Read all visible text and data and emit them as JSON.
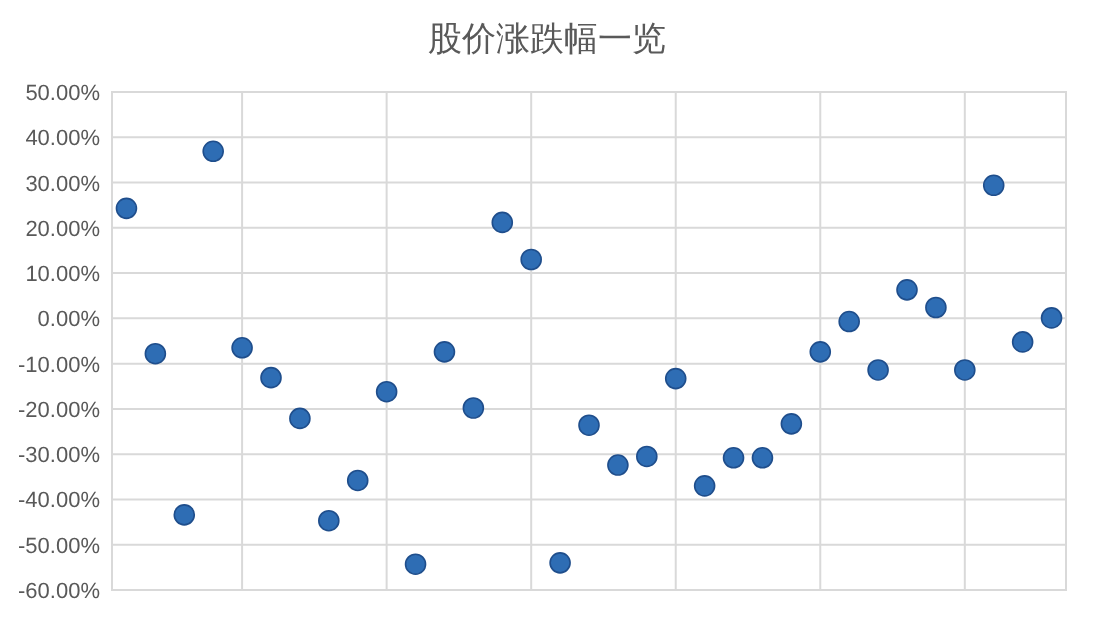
{
  "chart_data": {
    "type": "scatter",
    "title": "股价涨跌幅一览",
    "categories": [
      null,
      null,
      null,
      null,
      null,
      null,
      null,
      null,
      null,
      null,
      null,
      null,
      null,
      null,
      null,
      null,
      null,
      null,
      null,
      null,
      null,
      null,
      null,
      null,
      null,
      null,
      null,
      null,
      null,
      null,
      null,
      null,
      null
    ],
    "values": [
      24.3,
      -7.8,
      -43.4,
      36.9,
      -6.5,
      -13.1,
      -22.1,
      -44.7,
      -35.8,
      -16.2,
      -54.3,
      -7.4,
      -19.8,
      21.2,
      13.0,
      -54.0,
      -23.6,
      -32.4,
      -30.5,
      -13.3,
      -37.0,
      -30.8,
      -30.8,
      -23.3,
      -7.4,
      -0.7,
      -11.4,
      6.3,
      2.4,
      -11.4,
      29.4,
      -5.2,
      0.1
    ],
    "color": "#2e6db4",
    "marker": "circle",
    "grid": true,
    "tick_labels": "y",
    "ylim": [
      -60,
      50
    ],
    "yticks": [
      {
        "value": -60,
        "label": "-60.00%"
      },
      {
        "value": -50,
        "label": "-50.00%"
      },
      {
        "value": -40,
        "label": "-40.00%"
      },
      {
        "value": -30,
        "label": "-30.00%"
      },
      {
        "value": -20,
        "label": "-20.00%"
      },
      {
        "value": -10,
        "label": "-10.00%"
      },
      {
        "value": 0,
        "label": "0.00%"
      },
      {
        "value": 10,
        "label": "10.00%"
      },
      {
        "value": 20,
        "label": "20.00%"
      },
      {
        "value": 30,
        "label": "30.00%"
      },
      {
        "value": 40,
        "label": "40.00%"
      },
      {
        "value": 50,
        "label": "50.00%"
      }
    ]
  }
}
